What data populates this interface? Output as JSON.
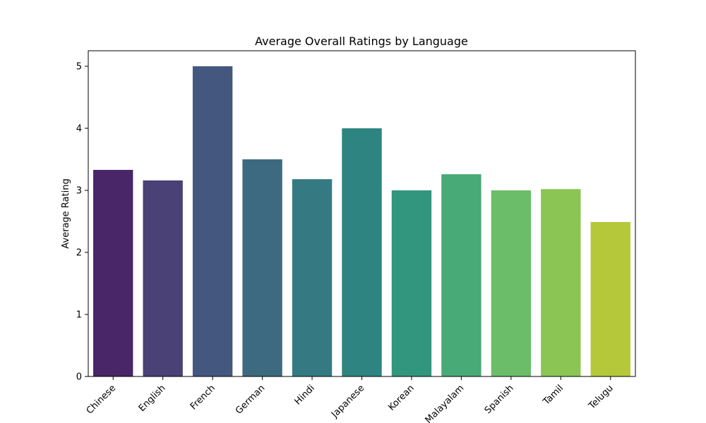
{
  "chart_data": {
    "type": "bar",
    "title": "Average Overall Ratings by Language",
    "xlabel": "",
    "ylabel": "Average Rating",
    "categories": [
      "Chinese",
      "English",
      "French",
      "German",
      "Hindi",
      "Japanese",
      "Korean",
      "Malayalam",
      "Spanish",
      "Tamil",
      "Telugu"
    ],
    "values": [
      3.33,
      3.16,
      5.0,
      3.5,
      3.18,
      4.0,
      3.0,
      3.26,
      3.0,
      3.02,
      2.49
    ],
    "colors": [
      "#482667",
      "#4a4177",
      "#44587f",
      "#3d6a80",
      "#357a82",
      "#2d8480",
      "#32967e",
      "#48aa77",
      "#6bbd6a",
      "#8bc553",
      "#b5c83a"
    ],
    "ylim": [
      0,
      5.25
    ],
    "yticks": [
      0,
      1,
      2,
      3,
      4,
      5
    ],
    "grid": false,
    "legend": "none"
  }
}
